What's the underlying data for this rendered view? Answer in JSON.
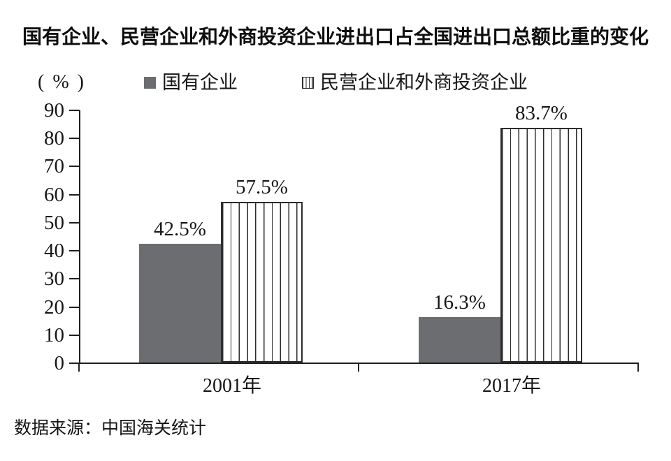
{
  "chart_data": {
    "type": "bar",
    "title": "国有企业、民营企业和外商投资企业进出口占全国进出口总额比重的变化",
    "y_unit_label": "(%)",
    "categories": [
      "2001年",
      "2017年"
    ],
    "series": [
      {
        "name": "国有企业",
        "values": [
          42.5,
          16.3
        ],
        "data_labels": [
          "42.5%",
          "16.3%"
        ],
        "fill": "solid",
        "color": "#6b6d70"
      },
      {
        "name": "民营企业和外商投资企业",
        "values": [
          57.5,
          83.7
        ],
        "data_labels": [
          "57.5%",
          "83.7%"
        ],
        "fill": "vertical-stripes",
        "stripe_color": "#2c2c2c",
        "background": "#ffffff"
      }
    ],
    "ylim": [
      0,
      90
    ],
    "yticks": [
      0,
      10,
      20,
      30,
      40,
      50,
      60,
      70,
      80,
      90
    ],
    "grid": false,
    "legend_position": "top",
    "axis_color": "#1f1f1f",
    "source": "数据来源：中国海关统计"
  }
}
